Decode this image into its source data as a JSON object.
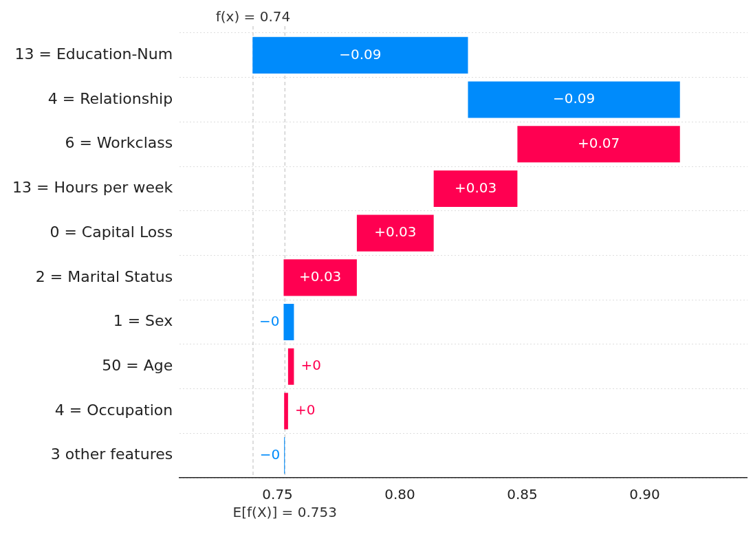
{
  "chart_data": {
    "type": "bar",
    "orientation": "horizontal",
    "categories": [
      "13 = Education-Num",
      "4 = Relationship",
      "6 = Workclass",
      "13 = Hours per week",
      "0 = Capital Loss",
      "2 = Marital Status",
      "1 = Sex",
      "50 = Age",
      "4 = Occupation",
      "3 other features"
    ],
    "values": [
      -0.088,
      -0.0866,
      0.0664,
      0.0342,
      0.0314,
      0.0299,
      -0.0042,
      0.0024,
      0.0016,
      -0.0003
    ],
    "base": [
      0.8278,
      0.9144,
      0.848,
      0.8138,
      0.7824,
      0.7525,
      0.7567,
      0.7543,
      0.7527,
      0.753
    ],
    "colors": [
      "#008bfb",
      "#008bfb",
      "#ff0051",
      "#ff0051",
      "#ff0051",
      "#ff0051",
      "#008bfb",
      "#ff0051",
      "#ff0051",
      "#008bfb"
    ],
    "value_labels": [
      "−0.09",
      "−0.09",
      "+0.07",
      "+0.03",
      "+0.03",
      "+0.03",
      "−0",
      "+0",
      "+0",
      "−0"
    ],
    "xlim": [
      0.71,
      0.942
    ],
    "xticks": [
      {
        "value": 0.75,
        "label": "0.75"
      },
      {
        "value": 0.8,
        "label": "0.80"
      },
      {
        "value": 0.85,
        "label": "0.85"
      },
      {
        "value": 0.9,
        "label": "0.90"
      }
    ],
    "grid": "y",
    "ref_lines": [
      {
        "axis": "x",
        "value": 0.74,
        "label": "f(x) = 0.74",
        "line_style": "dashed",
        "color": "#bbbbbb"
      },
      {
        "axis": "x",
        "value": 0.753,
        "label": "E[f(X)] = 0.753",
        "line_style": "dashed",
        "color": "#bbbbbb"
      }
    ]
  }
}
